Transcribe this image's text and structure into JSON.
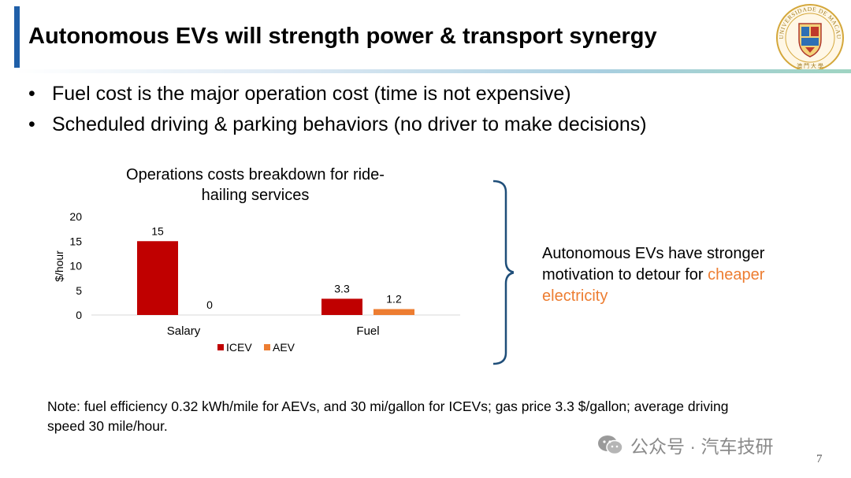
{
  "slide": {
    "title": "Autonomous EVs will strength power & transport synergy",
    "page_number": "7",
    "accent_color": "#1f5fa8",
    "logo_icon": "university-of-macau-crest-icon",
    "logo_text": "UNIVERSIDADE DE MACAU 澳門大學"
  },
  "bullets": [
    {
      "marker": "•",
      "text": "Fuel cost is the major operation cost (time is not expensive)"
    },
    {
      "marker": "•",
      "text": "Scheduled driving & parking behaviors (no driver to make decisions)"
    }
  ],
  "chart_data": {
    "type": "bar",
    "title": "Operations costs breakdown for ride-hailing services",
    "title_lines": [
      "Operations costs breakdown for ride-",
      "hailing services"
    ],
    "ylabel": "$/hour",
    "xlabel": "",
    "categories": [
      "Salary",
      "Fuel"
    ],
    "series": [
      {
        "name": "ICEV",
        "values": [
          15,
          3.3
        ],
        "labels": [
          "15",
          "3.3"
        ],
        "color": "#c00000"
      },
      {
        "name": "AEV",
        "values": [
          0,
          1.2
        ],
        "labels": [
          "0",
          "1.2"
        ],
        "color": "#ed7d31"
      }
    ],
    "ylim": [
      0,
      20
    ],
    "yticks": [
      "0",
      "5",
      "10",
      "15",
      "20"
    ],
    "grid": false,
    "legend": "bottom"
  },
  "callout": {
    "text_before": "Autonomous EVs have stronger motivation to detour for ",
    "highlight": "cheaper electricity",
    "highlight_color": "#ed7d31",
    "brace_color": "#1f4e79"
  },
  "note": "Note: fuel efficiency 0.32 kWh/mile for AEVs, and 30 mi/gallon for ICEVs; gas price 3.3 $/gallon; average driving speed 30 mile/hour.",
  "watermark": {
    "icon": "wechat-icon",
    "text": "公众号 · 汽车技研"
  }
}
